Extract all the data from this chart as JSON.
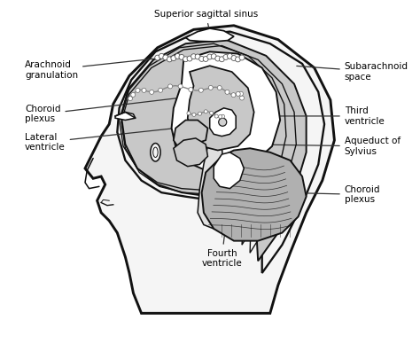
{
  "background_color": "#ffffff",
  "labels": {
    "superior_sagittal_sinus": "Superior sagittal sinus",
    "arachnoid_granulation": "Arachnoid\ngranulation",
    "subarachnoid_space": "Subarachnoid\nspace",
    "choroid_plexus_left": "Choroid\nplexus",
    "lateral_ventricle": "Lateral\nventricle",
    "third_ventricle": "Third\nventricle",
    "aqueduct_sylvius": "Aqueduct of\nSylvius",
    "choroid_plexus_right": "Choroid\nplexus",
    "fourth_ventricle": "Fourth\nventricle"
  },
  "skull_ec": "#111111",
  "skin_fc": "#f5f5f5",
  "brain_fc": "#c8c8c8",
  "ventricle_fc": "#ffffff",
  "cerebellum_fc": "#b0b0b0",
  "dark_gray": "#909090",
  "line_width": 1.4,
  "annotation_fontsize": 7.5,
  "figsize": [
    4.74,
    3.88
  ],
  "dpi": 100
}
